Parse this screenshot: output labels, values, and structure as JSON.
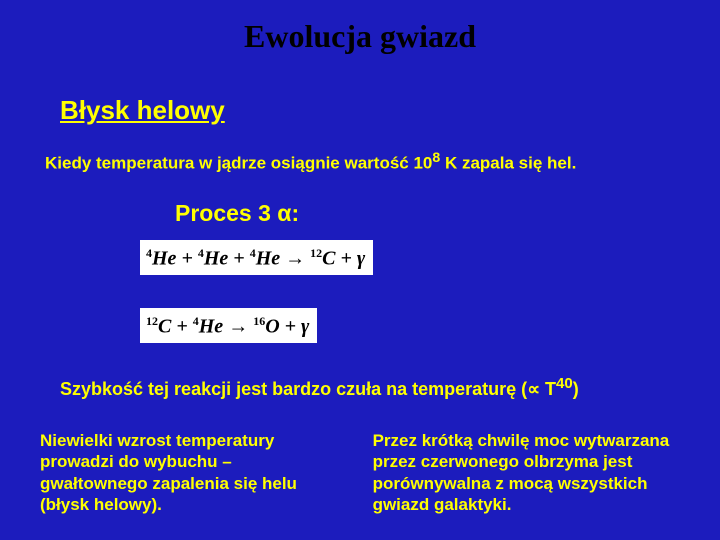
{
  "background_color": "#1c1cbd",
  "title": {
    "text": "Ewolucja gwiazd",
    "color": "#000000",
    "font_family": "Times New Roman",
    "font_size_pt": 32,
    "font_weight": "bold"
  },
  "section_heading": {
    "text": "Błysk helowy",
    "color": "#ffff00",
    "font_size_pt": 26,
    "underline": true,
    "font_weight": "bold"
  },
  "intro_line": {
    "prefix": "Kiedy temperatura w jądrze osiągnie wartość 10",
    "exponent": "8",
    "suffix": " K zapala się hel.",
    "color": "#ffff00",
    "font_size_pt": 17,
    "font_weight": "bold"
  },
  "process_label": {
    "prefix": "Proces 3 ",
    "alpha": "α",
    "suffix": ":",
    "color": "#ffff00",
    "font_size_pt": 23,
    "font_weight": "bold"
  },
  "equations": {
    "box_background": "#ffffff",
    "text_color": "#000000",
    "font_family": "Times New Roman",
    "font_style": "italic",
    "font_weight": "bold",
    "font_size_pt": 20,
    "eq1": {
      "terms": [
        {
          "sup": "4",
          "sym": "He"
        },
        {
          "op": "+"
        },
        {
          "sup": "4",
          "sym": "He"
        },
        {
          "op": "+"
        },
        {
          "sup": "4",
          "sym": "He"
        },
        {
          "op": "→"
        },
        {
          "sup": "12",
          "sym": "C"
        },
        {
          "op": "+"
        },
        {
          "sym": "γ"
        }
      ]
    },
    "eq2": {
      "terms": [
        {
          "sup": "12",
          "sym": "C"
        },
        {
          "op": "+"
        },
        {
          "sup": "4",
          "sym": "He"
        },
        {
          "op": "→"
        },
        {
          "sup": "16",
          "sym": "O"
        },
        {
          "op": "+"
        },
        {
          "sym": "γ"
        }
      ]
    }
  },
  "speed_line": {
    "prefix": "Szybkość tej reakcji jest bardzo czuła na temperaturę (",
    "prop": "∝",
    "mid": " T",
    "exponent": "40",
    "suffix": ")",
    "color": "#ffff00",
    "font_size_pt": 18,
    "font_weight": "bold"
  },
  "bottom_columns": {
    "color": "#ffff00",
    "font_size_pt": 17,
    "font_weight": "bold",
    "left": "Niewielki wzrost temperatury prowadzi do wybuchu – gwałtownego zapalenia się helu (błysk helowy).",
    "right": "Przez krótką chwilę moc wytwarzana przez czerwonego olbrzyma jest porównywalna z mocą wszystkich gwiazd galaktyki."
  }
}
